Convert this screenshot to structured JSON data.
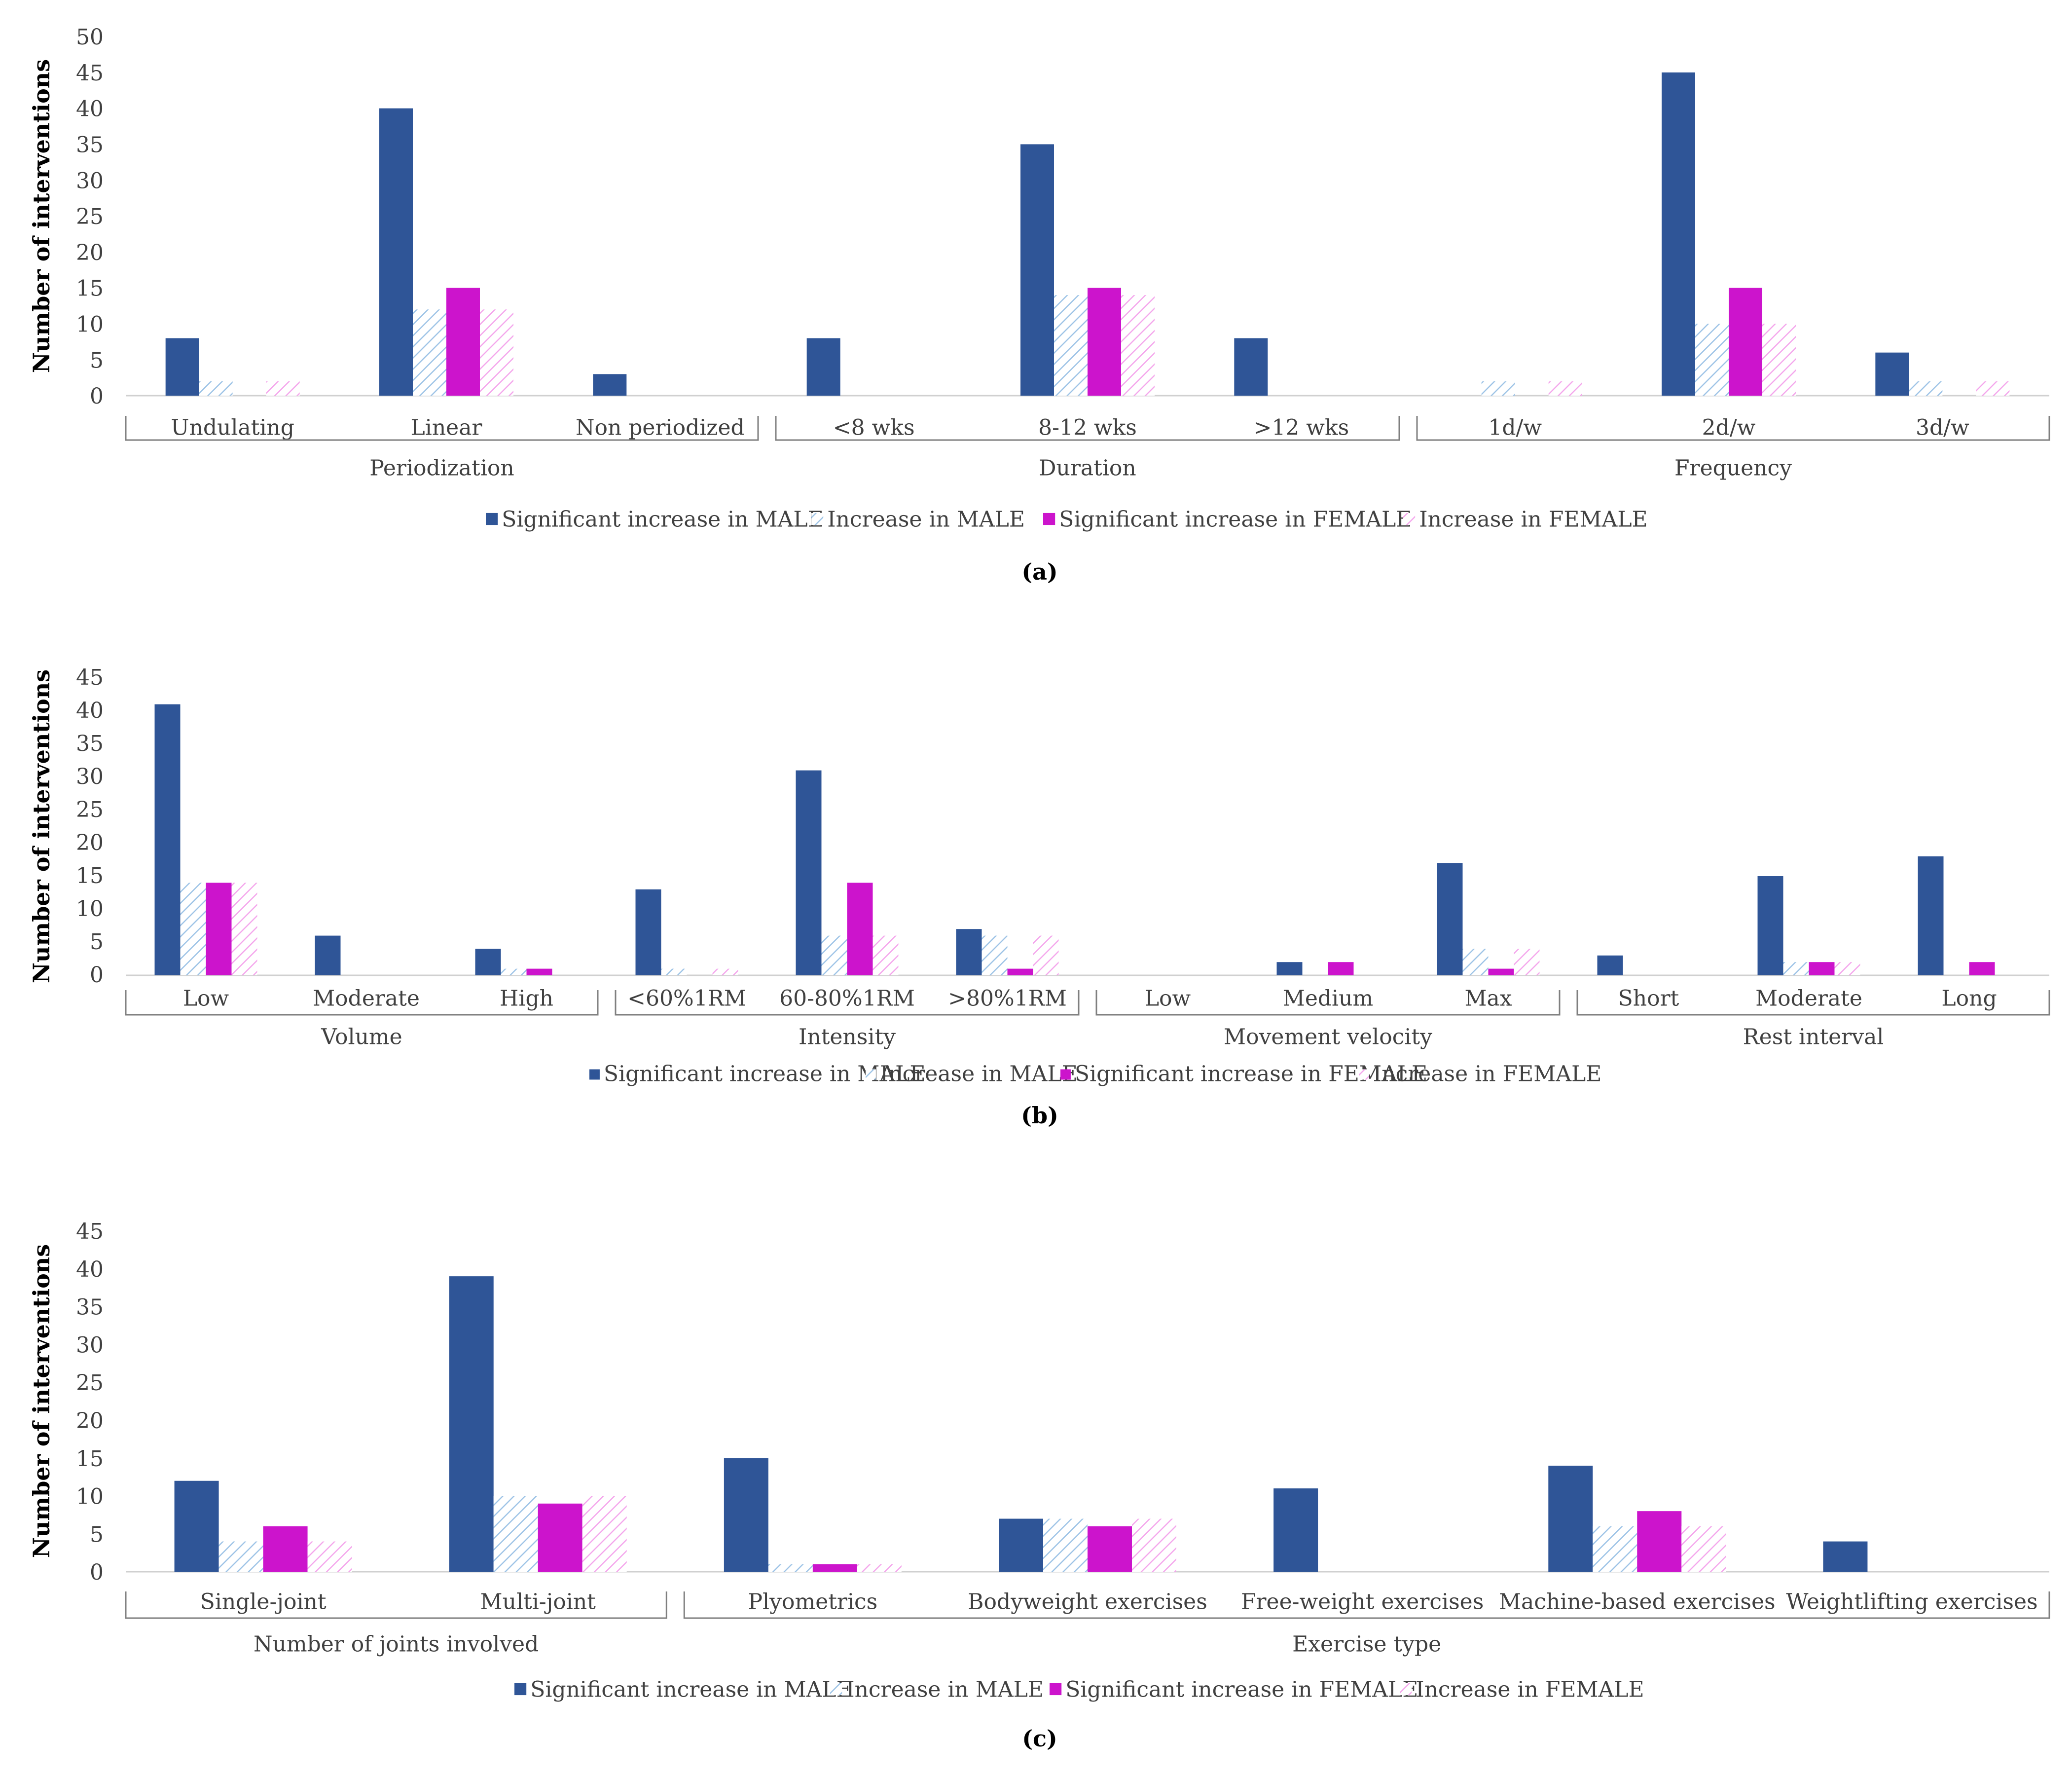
{
  "colors": {
    "sig_male": "#2F5597",
    "inc_male": "#9DC3E6",
    "sig_female": "#CC14CC",
    "inc_female": "#F4A6EC",
    "axis": "#a6a6a6",
    "text": "#404040"
  },
  "chart_data": [
    {
      "type": "bar",
      "panel_label": "(a)",
      "ylabel": "Number of interventions",
      "ylim": [
        0,
        50
      ],
      "yticks": [
        0,
        5,
        10,
        15,
        20,
        25,
        30,
        35,
        40,
        45,
        50
      ],
      "groups": [
        {
          "label": "Periodization",
          "categories": [
            "Undulating",
            "Linear",
            "Non periodized"
          ]
        },
        {
          "label": "Duration",
          "categories": [
            "<8 wks",
            "8-12 wks",
            ">12 wks"
          ]
        },
        {
          "label": "Frequency",
          "categories": [
            "1d/w",
            "2d/w",
            "3d/w"
          ]
        }
      ],
      "categories": [
        "Undulating",
        "Linear",
        "Non periodized",
        "<8 wks",
        "8-12 wks",
        ">12 wks",
        "1d/w",
        "2d/w",
        "3d/w"
      ],
      "series": [
        {
          "name": "Significant increase in MALE",
          "values": [
            8,
            40,
            3,
            8,
            35,
            8,
            0,
            45,
            6
          ]
        },
        {
          "name": "Increase in MALE",
          "values": [
            2,
            12,
            0,
            0,
            14,
            0,
            2,
            10,
            2
          ]
        },
        {
          "name": "Significant increase in FEMALE",
          "values": [
            0,
            15,
            0,
            0,
            15,
            0,
            0,
            15,
            0
          ]
        },
        {
          "name": "Increase in FEMALE",
          "values": [
            2,
            12,
            0,
            0,
            14,
            0,
            2,
            10,
            2
          ]
        }
      ]
    },
    {
      "type": "bar",
      "panel_label": "(b)",
      "ylabel": "Number of interventions",
      "ylim": [
        0,
        45
      ],
      "yticks": [
        0,
        5,
        10,
        15,
        20,
        25,
        30,
        35,
        40,
        45
      ],
      "groups": [
        {
          "label": "Volume",
          "categories": [
            "Low",
            "Moderate",
            "High"
          ]
        },
        {
          "label": "Intensity",
          "categories": [
            "<60%1RM",
            "60-80%1RM",
            ">80%1RM"
          ]
        },
        {
          "label": "Movement velocity",
          "categories": [
            "Low",
            "Medium",
            "Max"
          ]
        },
        {
          "label": "Rest interval",
          "categories": [
            "Short",
            "Moderate",
            "Long"
          ]
        }
      ],
      "categories": [
        "Low",
        "Moderate",
        "High",
        "<60%1RM",
        "60-80%1RM",
        ">80%1RM",
        "Low",
        "Medium",
        "Max",
        "Short",
        "Moderate",
        "Long"
      ],
      "series": [
        {
          "name": "Significant increase in MALE",
          "values": [
            41,
            6,
            4,
            13,
            31,
            7,
            0,
            2,
            17,
            3,
            15,
            18
          ]
        },
        {
          "name": "Increase in MALE",
          "values": [
            14,
            0,
            1,
            1,
            6,
            6,
            0,
            0,
            4,
            0,
            2,
            0
          ]
        },
        {
          "name": "Significant increase in FEMALE",
          "values": [
            14,
            0,
            1,
            0,
            14,
            1,
            0,
            2,
            1,
            0,
            2,
            2
          ]
        },
        {
          "name": "Increase in FEMALE",
          "values": [
            14,
            0,
            0,
            1,
            6,
            6,
            0,
            0,
            4,
            0,
            2,
            0
          ]
        }
      ]
    },
    {
      "type": "bar",
      "panel_label": "(c)",
      "ylabel": "Number of interventions",
      "ylim": [
        0,
        45
      ],
      "yticks": [
        0,
        5,
        10,
        15,
        20,
        25,
        30,
        35,
        40,
        45
      ],
      "groups": [
        {
          "label": "Number of joints involved",
          "categories": [
            "Single-joint",
            "Multi-joint"
          ]
        },
        {
          "label": "Exercise type",
          "categories": [
            "Plyometrics",
            "Bodyweight exercises",
            "Free-weight exercises",
            "Machine-based exercises",
            "Weightlifting exercises"
          ]
        }
      ],
      "categories": [
        "Single-joint",
        "Multi-joint",
        "Plyometrics",
        "Bodyweight exercises",
        "Free-weight exercises",
        "Machine-based exercises",
        "Weightlifting exercises"
      ],
      "series": [
        {
          "name": "Significant increase in MALE",
          "values": [
            12,
            39,
            15,
            7,
            11,
            14,
            4
          ]
        },
        {
          "name": "Increase in MALE",
          "values": [
            4,
            10,
            1,
            7,
            0,
            6,
            0
          ]
        },
        {
          "name": "Significant increase in FEMALE",
          "values": [
            6,
            9,
            1,
            6,
            0,
            8,
            0
          ]
        },
        {
          "name": "Increase in FEMALE",
          "values": [
            4,
            10,
            1,
            7,
            0,
            6,
            0
          ]
        }
      ]
    }
  ]
}
